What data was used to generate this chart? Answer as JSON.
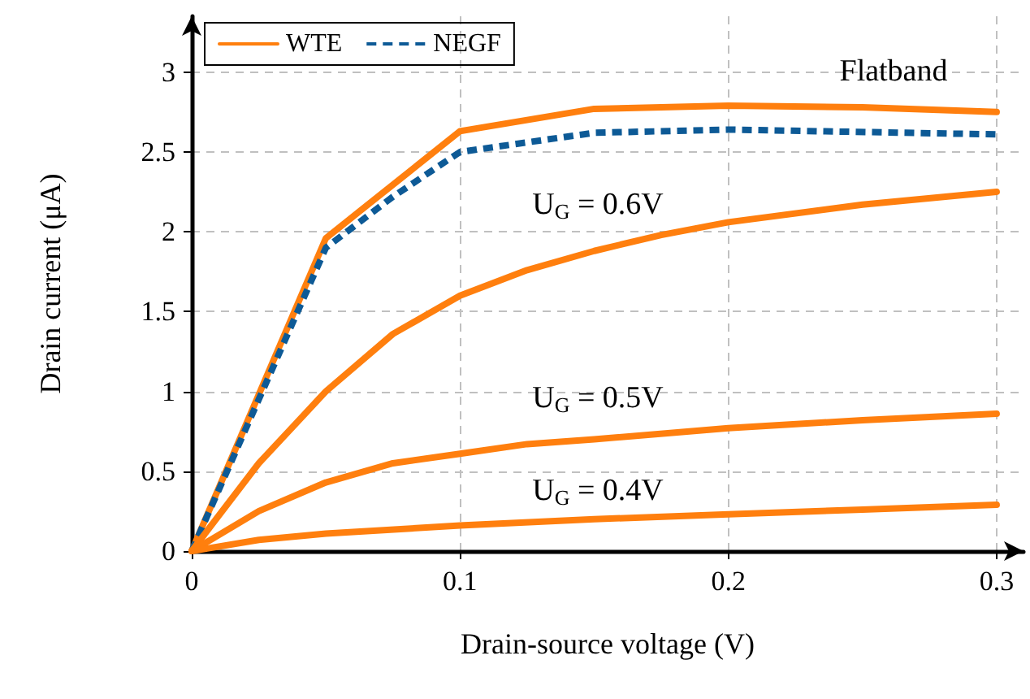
{
  "chart_data": {
    "type": "line",
    "xlabel": "Drain-source voltage (V)",
    "ylabel": "Drain current (μA)",
    "xlim": [
      0,
      0.31
    ],
    "xticks": [
      0,
      0.1,
      0.2,
      0.3
    ],
    "ylim": [
      0,
      3.35
    ],
    "yticks": [
      0,
      0.5,
      1,
      1.5,
      2,
      2.5,
      3
    ],
    "grid": true,
    "legend": "top left",
    "marker": "none",
    "series": [
      {
        "name": "WTE",
        "color": "#ff7f0e",
        "line_style": "solid",
        "x": [
          0,
          0.05,
          0.1,
          0.15,
          0.2,
          0.25,
          0.3
        ],
        "values": [
          0,
          1.96,
          2.63,
          2.77,
          2.79,
          2.78,
          2.75
        ]
      },
      {
        "name": "NEGF",
        "color": "#0d5a96",
        "line_style": "dashed",
        "x": [
          0,
          0.025,
          0.05,
          0.075,
          0.1,
          0.15,
          0.2,
          0.3
        ],
        "values": [
          0,
          0.95,
          1.9,
          2.22,
          2.5,
          2.62,
          2.64,
          2.61
        ]
      },
      {
        "color": "#ff7f0e",
        "line_style": "solid",
        "x": [
          0,
          0.025,
          0.05,
          0.075,
          0.1,
          0.125,
          0.15,
          0.175,
          0.2,
          0.25,
          0.3
        ],
        "values": [
          0,
          0.55,
          1.0,
          1.36,
          1.6,
          1.76,
          1.88,
          1.98,
          2.06,
          2.17,
          2.25
        ]
      },
      {
        "color": "#ff7f0e",
        "line_style": "solid",
        "x": [
          0,
          0.025,
          0.05,
          0.075,
          0.1,
          0.125,
          0.15,
          0.2,
          0.25,
          0.3
        ],
        "values": [
          0,
          0.25,
          0.43,
          0.55,
          0.61,
          0.67,
          0.7,
          0.77,
          0.82,
          0.86
        ]
      },
      {
        "color": "#ff7f0e",
        "line_style": "solid",
        "x": [
          0,
          0.025,
          0.05,
          0.1,
          0.15,
          0.2,
          0.25,
          0.3
        ],
        "values": [
          0,
          0.07,
          0.11,
          0.16,
          0.2,
          0.23,
          0.26,
          0.29
        ]
      }
    ],
    "annotations": [
      "Flatband",
      "U$_{G}$ = 0.6V",
      "U$_{G}$ = 0.5V",
      "U$_{G}$ = 0.4V"
    ]
  }
}
